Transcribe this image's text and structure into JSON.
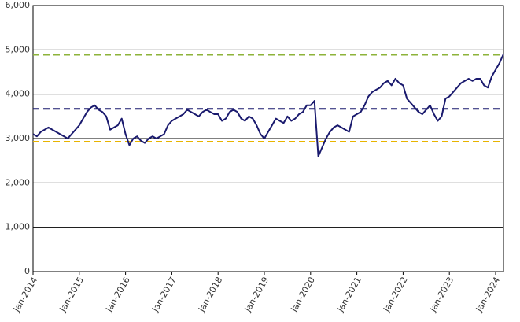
{
  "chart_data": {
    "type": "line",
    "x": [
      2014,
      2014.083,
      2014.167,
      2014.25,
      2014.333,
      2014.417,
      2014.5,
      2014.583,
      2014.667,
      2014.75,
      2014.833,
      2014.917,
      2015,
      2015.083,
      2015.167,
      2015.25,
      2015.333,
      2015.417,
      2015.5,
      2015.583,
      2015.667,
      2015.75,
      2015.833,
      2015.917,
      2016,
      2016.083,
      2016.167,
      2016.25,
      2016.333,
      2016.417,
      2016.5,
      2016.583,
      2016.667,
      2016.75,
      2016.833,
      2016.917,
      2017,
      2017.083,
      2017.167,
      2017.25,
      2017.333,
      2017.417,
      2017.5,
      2017.583,
      2017.667,
      2017.75,
      2017.833,
      2017.917,
      2018,
      2018.083,
      2018.167,
      2018.25,
      2018.333,
      2018.417,
      2018.5,
      2018.583,
      2018.667,
      2018.75,
      2018.833,
      2018.917,
      2019,
      2019.083,
      2019.167,
      2019.25,
      2019.333,
      2019.417,
      2019.5,
      2019.583,
      2019.667,
      2019.75,
      2019.833,
      2019.917,
      2020,
      2020.083,
      2020.167,
      2020.25,
      2020.333,
      2020.417,
      2020.5,
      2020.583,
      2020.667,
      2020.75,
      2020.833,
      2020.917,
      2021,
      2021.083,
      2021.167,
      2021.25,
      2021.333,
      2021.417,
      2021.5,
      2021.583,
      2021.667,
      2021.75,
      2021.833,
      2021.917,
      2022,
      2022.083,
      2022.167,
      2022.25,
      2022.333,
      2022.417,
      2022.5,
      2022.583,
      2022.667,
      2022.75,
      2022.833,
      2022.917,
      2023,
      2023.083,
      2023.167,
      2023.25,
      2023.333,
      2023.417,
      2023.5,
      2023.583,
      2023.667,
      2023.75,
      2023.833,
      2023.917,
      2024,
      2024.083,
      2024.167
    ],
    "series": [
      {
        "color": "#1a1a6e",
        "values": [
          3100,
          3050,
          3150,
          3200,
          3250,
          3200,
          3150,
          3100,
          3050,
          3000,
          3100,
          3200,
          3300,
          3450,
          3600,
          3700,
          3750,
          3650,
          3600,
          3500,
          3200,
          3250,
          3300,
          3450,
          3100,
          2850,
          3000,
          3050,
          2950,
          2900,
          3000,
          3050,
          3000,
          3050,
          3100,
          3300,
          3400,
          3450,
          3500,
          3550,
          3650,
          3600,
          3550,
          3500,
          3600,
          3650,
          3600,
          3550,
          3550,
          3400,
          3450,
          3600,
          3650,
          3600,
          3450,
          3400,
          3500,
          3450,
          3300,
          3100,
          3000,
          3150,
          3300,
          3450,
          3400,
          3350,
          3500,
          3400,
          3450,
          3550,
          3600,
          3750,
          3750,
          3850,
          2600,
          2800,
          3000,
          3150,
          3250,
          3300,
          3250,
          3200,
          3150,
          3500,
          3550,
          3600,
          3750,
          3950,
          4050,
          4100,
          4150,
          4250,
          4300,
          4200,
          4350,
          4250,
          4200,
          3900,
          3800,
          3700,
          3600,
          3550,
          3650,
          3750,
          3550,
          3400,
          3500,
          3900,
          3950,
          4050,
          4150,
          4250,
          4300,
          4350,
          4300,
          4350,
          4350,
          4200,
          4150,
          4400,
          4550,
          4700,
          4900
        ]
      }
    ],
    "reference_lines": [
      {
        "value": 4890,
        "color": "#8db33a"
      },
      {
        "value": 3670,
        "color": "#1a1a6e"
      },
      {
        "value": 2930,
        "color": "#e8b400"
      }
    ],
    "xlim": [
      2014,
      2024.17
    ],
    "xticks": [
      {
        "value": 2014,
        "label": "Jan-2014"
      },
      {
        "value": 2015,
        "label": "Jan-2015"
      },
      {
        "value": 2016,
        "label": "Jan-2016"
      },
      {
        "value": 2017,
        "label": "Jan-2017"
      },
      {
        "value": 2018,
        "label": "Jan-2018"
      },
      {
        "value": 2019,
        "label": "Jan-2019"
      },
      {
        "value": 2020,
        "label": "Jan-2020"
      },
      {
        "value": 2021,
        "label": "Jan-2021"
      },
      {
        "value": 2022,
        "label": "Jan-2022"
      },
      {
        "value": 2023,
        "label": "Jan-2023"
      },
      {
        "value": 2024,
        "label": "Jan-2024"
      }
    ],
    "ylim": [
      0,
      6000
    ],
    "yticks": [
      0,
      {
        "value": 1000,
        "label": "1,000"
      },
      {
        "value": 2000,
        "label": "2,000"
      },
      {
        "value": 3000,
        "label": "3,000"
      },
      {
        "value": 4000,
        "label": "4,000"
      },
      {
        "value": 5000,
        "label": "5,000"
      },
      {
        "value": 6000,
        "label": "6,000"
      }
    ],
    "grid": true
  }
}
